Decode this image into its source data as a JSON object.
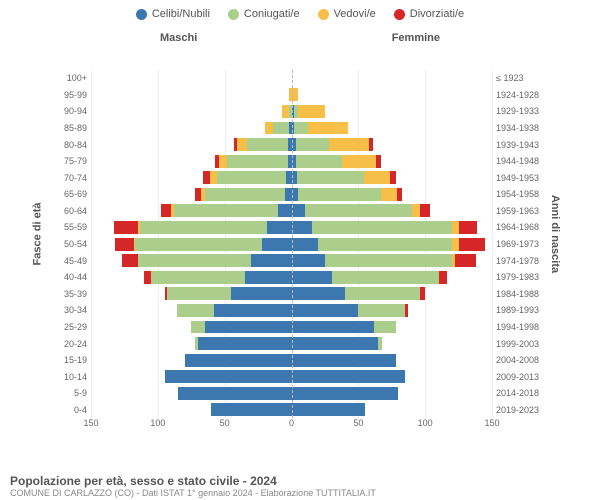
{
  "legend": [
    {
      "label": "Celibi/Nubili",
      "color": "#3c77b0"
    },
    {
      "label": "Coniugati/e",
      "color": "#abce8d"
    },
    {
      "label": "Vedovi/e",
      "color": "#f8bf48"
    },
    {
      "label": "Divorziati/e",
      "color": "#d62728"
    }
  ],
  "side_left": "Maschi",
  "side_right": "Femmine",
  "yaxis_left": "Fasce di età",
  "yaxis_right": "Anni di nascita",
  "xmax": 150,
  "xticks": [
    150,
    100,
    50,
    0,
    50,
    100,
    150
  ],
  "footer_title": "Popolazione per età, sesso e stato civile - 2024",
  "footer_sub": "COMUNE DI CARLAZZO (CO) - Dati ISTAT 1° gennaio 2024 - Elaborazione TUTTITALIA.IT",
  "rows": [
    {
      "age": "100+",
      "year": "≤ 1923",
      "m": [
        0,
        0,
        0,
        0
      ],
      "f": [
        0,
        0,
        0,
        0
      ]
    },
    {
      "age": "95-99",
      "year": "1924-1928",
      "m": [
        0,
        0,
        2,
        0
      ],
      "f": [
        0,
        0,
        5,
        0
      ]
    },
    {
      "age": "90-94",
      "year": "1929-1933",
      "m": [
        0,
        2,
        5,
        0
      ],
      "f": [
        2,
        3,
        20,
        0
      ]
    },
    {
      "age": "85-89",
      "year": "1934-1938",
      "m": [
        2,
        12,
        6,
        0
      ],
      "f": [
        2,
        10,
        30,
        0
      ]
    },
    {
      "age": "80-84",
      "year": "1939-1943",
      "m": [
        3,
        30,
        8,
        2
      ],
      "f": [
        3,
        25,
        30,
        3
      ]
    },
    {
      "age": "75-79",
      "year": "1944-1948",
      "m": [
        3,
        45,
        6,
        3
      ],
      "f": [
        3,
        35,
        25,
        4
      ]
    },
    {
      "age": "70-74",
      "year": "1949-1953",
      "m": [
        4,
        52,
        5,
        5
      ],
      "f": [
        4,
        50,
        20,
        4
      ]
    },
    {
      "age": "65-69",
      "year": "1954-1958",
      "m": [
        5,
        60,
        3,
        4
      ],
      "f": [
        5,
        62,
        12,
        4
      ]
    },
    {
      "age": "60-64",
      "year": "1959-1963",
      "m": [
        10,
        78,
        2,
        8
      ],
      "f": [
        10,
        80,
        6,
        8
      ]
    },
    {
      "age": "55-59",
      "year": "1964-1968",
      "m": [
        18,
        95,
        2,
        18
      ],
      "f": [
        15,
        105,
        5,
        14
      ]
    },
    {
      "age": "50-54",
      "year": "1969-1973",
      "m": [
        22,
        95,
        1,
        14
      ],
      "f": [
        20,
        100,
        5,
        20
      ]
    },
    {
      "age": "45-49",
      "year": "1974-1978",
      "m": [
        30,
        85,
        0,
        12
      ],
      "f": [
        25,
        95,
        2,
        16
      ]
    },
    {
      "age": "40-44",
      "year": "1979-1983",
      "m": [
        35,
        70,
        0,
        5
      ],
      "f": [
        30,
        80,
        0,
        6
      ]
    },
    {
      "age": "35-39",
      "year": "1984-1988",
      "m": [
        45,
        48,
        0,
        2
      ],
      "f": [
        40,
        56,
        0,
        4
      ]
    },
    {
      "age": "30-34",
      "year": "1989-1993",
      "m": [
        58,
        28,
        0,
        0
      ],
      "f": [
        50,
        35,
        0,
        2
      ]
    },
    {
      "age": "25-29",
      "year": "1994-1998",
      "m": [
        65,
        10,
        0,
        0
      ],
      "f": [
        62,
        16,
        0,
        0
      ]
    },
    {
      "age": "20-24",
      "year": "1999-2003",
      "m": [
        70,
        2,
        0,
        0
      ],
      "f": [
        65,
        3,
        0,
        0
      ]
    },
    {
      "age": "15-19",
      "year": "2004-2008",
      "m": [
        80,
        0,
        0,
        0
      ],
      "f": [
        78,
        0,
        0,
        0
      ]
    },
    {
      "age": "10-14",
      "year": "2009-2013",
      "m": [
        95,
        0,
        0,
        0
      ],
      "f": [
        85,
        0,
        0,
        0
      ]
    },
    {
      "age": "5-9",
      "year": "2014-2018",
      "m": [
        85,
        0,
        0,
        0
      ],
      "f": [
        80,
        0,
        0,
        0
      ]
    },
    {
      "age": "0-4",
      "year": "2019-2023",
      "m": [
        60,
        0,
        0,
        0
      ],
      "f": [
        55,
        0,
        0,
        0
      ]
    }
  ],
  "colors": [
    "#3c77b0",
    "#abce8d",
    "#f8bf48",
    "#d62728"
  ],
  "grid_color": "#eeeeee",
  "bg": "#ffffff"
}
